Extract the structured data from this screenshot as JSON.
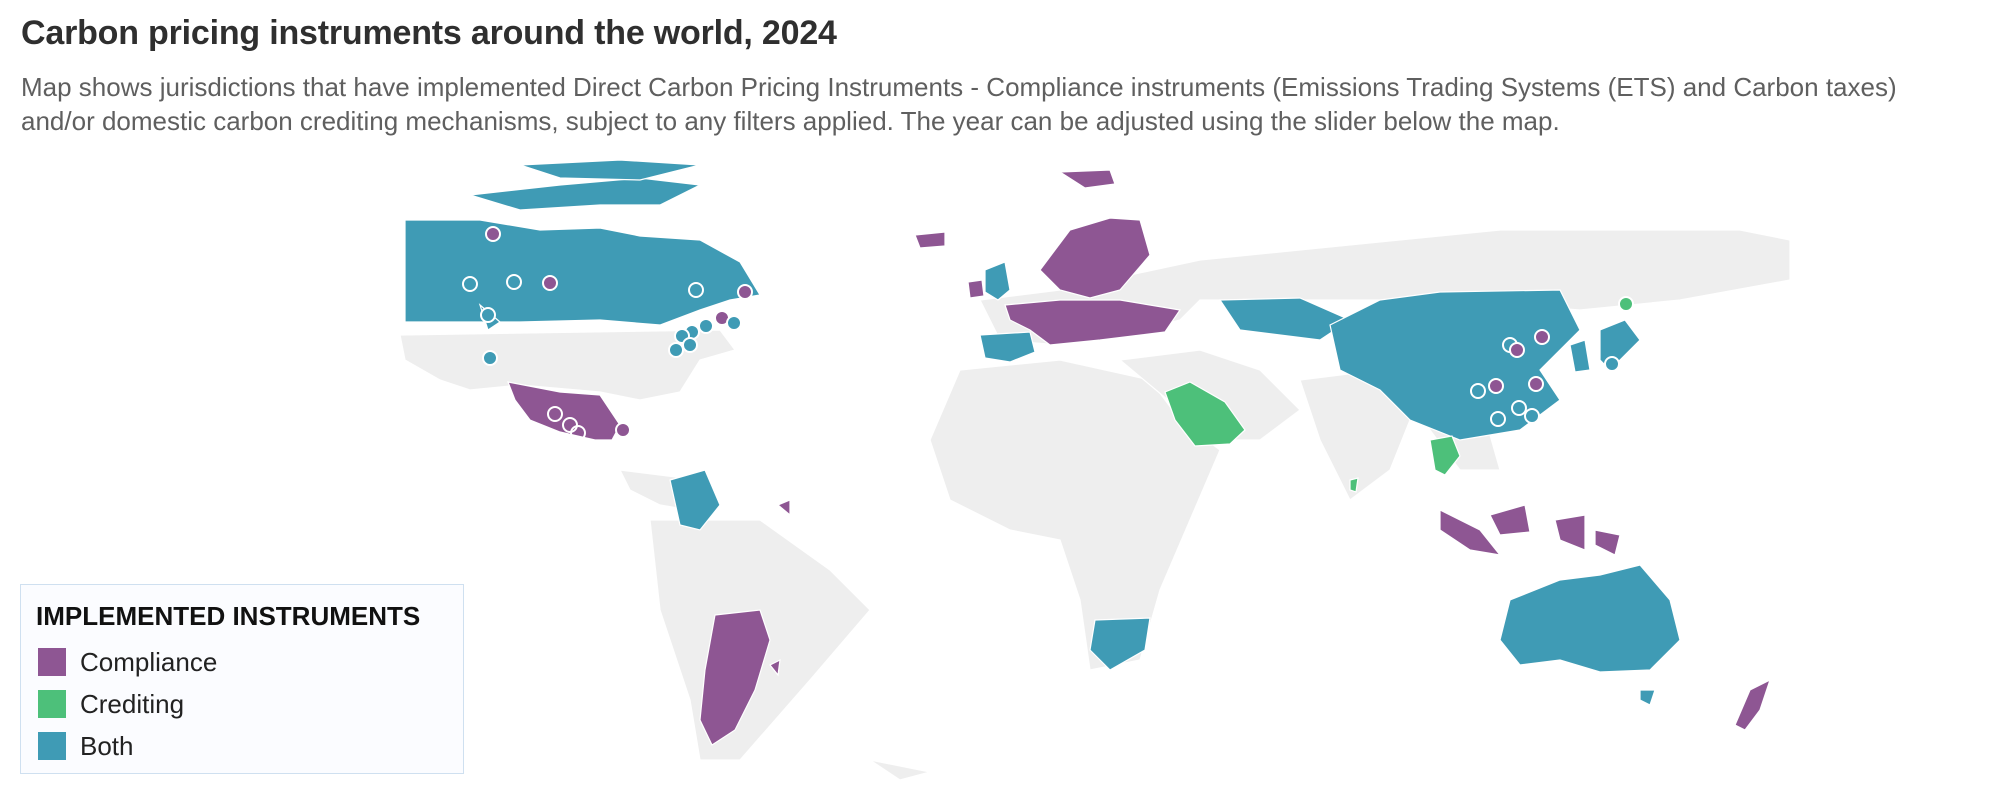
{
  "header": {
    "title": "Carbon pricing instruments around the world, 2024",
    "subtitle": "Map shows jurisdictions that have implemented Direct Carbon Pricing Instruments - Compliance instruments (Emissions Trading Systems (ETS) and Carbon taxes) and/or domestic carbon crediting mechanisms, subject to any filters applied. The year can be adjusted using the slider below the map."
  },
  "legend": {
    "title": "IMPLEMENTED INSTRUMENTS",
    "items": [
      {
        "label": "Compliance",
        "color": "#8e5693"
      },
      {
        "label": "Crediting",
        "color": "#4dc07a"
      },
      {
        "label": "Both",
        "color": "#3f9bb5"
      }
    ]
  },
  "colors": {
    "land": "#eeeeee",
    "border": "#ffffff",
    "compliance": "#8e5693",
    "crediting": "#4dc07a",
    "both": "#3f9bb5"
  },
  "map_data": {
    "year": 2024,
    "compliance": [
      "Greenland",
      "Iceland",
      "Ireland",
      "France",
      "Germany",
      "Sweden",
      "Finland",
      "Poland",
      "Mexico",
      "Argentina",
      "Indonesia",
      "New Zealand",
      "Papua New Guinea",
      "French Guiana"
    ],
    "crediting": [
      "Saudi Arabia",
      "Thailand",
      "Sri Lanka"
    ],
    "both": [
      "Canada",
      "Alaska",
      "United Kingdom",
      "Spain",
      "Portugal",
      "Colombia",
      "South Africa",
      "China",
      "Mongolia",
      "Japan",
      "South Korea",
      "Australia"
    ]
  }
}
